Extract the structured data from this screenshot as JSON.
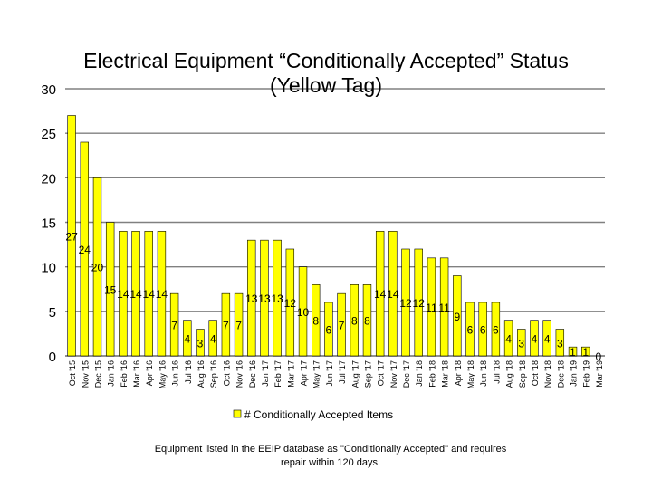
{
  "chart_data": {
    "type": "bar",
    "title_line1": "Electrical Equipment “Conditionally Accepted” Status",
    "title_line2": "(Yellow Tag)",
    "categories": [
      "Oct '15",
      "Nov '15",
      "Dec '15",
      "Jan '16",
      "Feb '16",
      "Mar '16",
      "Apr '16",
      "May '16",
      "Jun '16",
      "Jul '16",
      "Aug '16",
      "Sep '16",
      "Oct '16",
      "Nov '16",
      "Dec '16",
      "Jan '17",
      "Feb '17",
      "Mar '17",
      "Apr '17",
      "May '17",
      "Jun '17",
      "Jul '17",
      "Aug '17",
      "Sep '17",
      "Oct '17",
      "Nov '17",
      "Dec '17",
      "Jan '18",
      "Feb '18",
      "Mar '18",
      "Apr '18",
      "May '18",
      "Jun '18",
      "Jul '18",
      "Aug '18",
      "Sep '18",
      "Oct '18",
      "Nov '18",
      "Dec '18",
      "Jan '19",
      "Feb '19",
      "Mar '19"
    ],
    "series": [
      {
        "name": "# Conditionally Accepted Items",
        "values": [
          27,
          24,
          20,
          15,
          14,
          14,
          14,
          14,
          7,
          4,
          3,
          4,
          7,
          7,
          13,
          13,
          13,
          12,
          10,
          8,
          6,
          7,
          8,
          8,
          14,
          14,
          12,
          12,
          11,
          11,
          9,
          6,
          6,
          6,
          4,
          3,
          4,
          4,
          3,
          1,
          1,
          0
        ],
        "color": "#FFFF00"
      }
    ],
    "value_labels": [
      "27",
      "24",
      "20",
      "15",
      "14",
      "14",
      "14",
      "14",
      "7",
      "4",
      "3",
      "4",
      "7",
      "7",
      "13",
      "13",
      "13",
      "12",
      "10",
      "8",
      "6",
      "7",
      "8",
      "8",
      "14",
      "14",
      "12",
      "12",
      "11",
      "11",
      "9",
      "6",
      "6",
      "6",
      "4",
      "3",
      "4",
      "4",
      "3",
      "1",
      "1",
      "0"
    ],
    "y_ticks": [
      "0",
      "5",
      "10",
      "15",
      "20",
      "25",
      "30"
    ],
    "ylim": [
      0,
      30
    ],
    "grid": true,
    "legend_position": "bottom",
    "bar_stroke_color": "#000000",
    "grid_color": "#808080",
    "footnote_line1": "Equipment listed in the EEIP database as \"Conditionally Accepted\" and requires",
    "footnote_line2": "repair within 120 days."
  }
}
